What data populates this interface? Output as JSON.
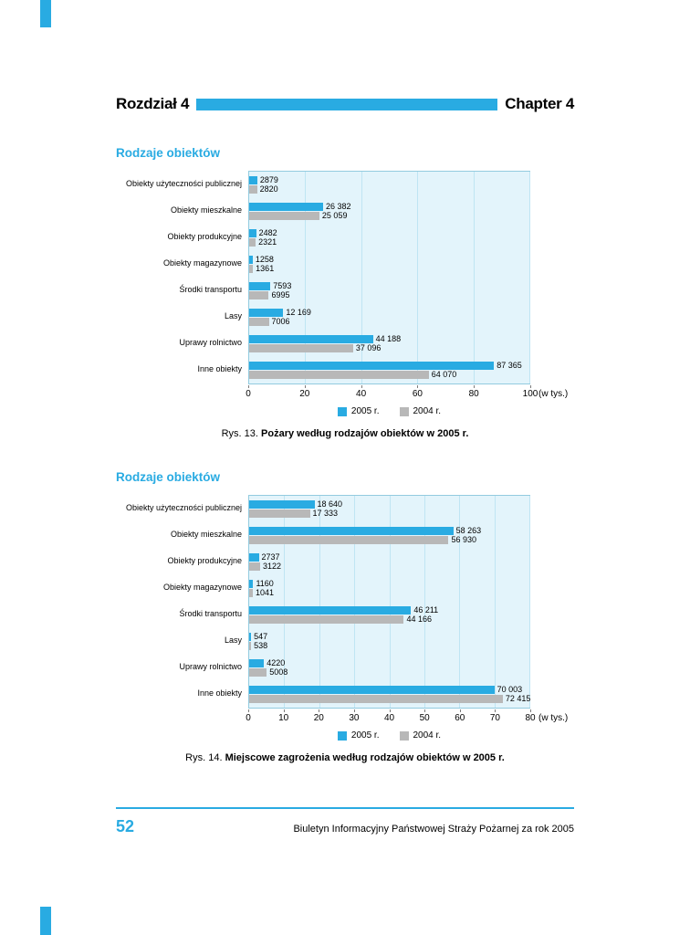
{
  "accent_color": "#29abe2",
  "header": {
    "left_title": "Rozdział 4",
    "right_title": "Chapter 4"
  },
  "sections": [
    {
      "title": "Rodzaje obiektów",
      "caption_label": "Rys. 13.",
      "caption_text": "Pożary według rodzajów obiektów w 2005 r."
    },
    {
      "title": "Rodzaje obiektów",
      "caption_label": "Rys. 14.",
      "caption_text": "Miejscowe zagrożenia według rodzajów obiektów w 2005 r."
    }
  ],
  "footer": {
    "page_number": "52",
    "journal_title": "Biuletyn Informacyjny Państwowej Straży Pożarnej za rok 2005"
  },
  "chart_data": [
    {
      "type": "bar",
      "orientation": "horizontal",
      "title": "Rodzaje obiektów",
      "x_unit_label": "(w tys.)",
      "xlim": [
        0,
        100
      ],
      "xticks": [
        0,
        20,
        40,
        60,
        80,
        100
      ],
      "scale_divisor": 1000,
      "grid": true,
      "legend_position": "bottom",
      "plot_background": "#e3f4fb",
      "categories": [
        "Obiekty użyteczności publicznej",
        "Obiekty mieszkalne",
        "Obiekty produkcyjne",
        "Obiekty magazynowe",
        "Środki transportu",
        "Lasy",
        "Uprawy rolnictwo",
        "Inne obiekty"
      ],
      "series": [
        {
          "name": "2005 r.",
          "color": "#29abe2",
          "values": [
            2879,
            26382,
            2482,
            1258,
            7593,
            12169,
            44188,
            87365
          ],
          "labels": [
            "2879",
            "26 382",
            "2482",
            "1258",
            "7593",
            "12 169",
            "44 188",
            "87 365"
          ]
        },
        {
          "name": "2004 r.",
          "color": "#b8b8b8",
          "values": [
            2820,
            25059,
            2321,
            1361,
            6995,
            7006,
            37096,
            64070
          ],
          "labels": [
            "2820",
            "25 059",
            "2321",
            "1361",
            "6995",
            "7006",
            "37 096",
            "64 070"
          ]
        }
      ]
    },
    {
      "type": "bar",
      "orientation": "horizontal",
      "title": "Rodzaje obiektów",
      "x_unit_label": "(w tys.)",
      "xlim": [
        0,
        80
      ],
      "xticks": [
        0,
        10,
        20,
        30,
        40,
        50,
        60,
        70,
        80
      ],
      "scale_divisor": 1000,
      "grid": true,
      "legend_position": "bottom",
      "plot_background": "#e3f4fb",
      "categories": [
        "Obiekty użyteczności publicznej",
        "Obiekty mieszkalne",
        "Obiekty produkcyjne",
        "Obiekty magazynowe",
        "Środki transportu",
        "Lasy",
        "Uprawy rolnictwo",
        "Inne obiekty"
      ],
      "series": [
        {
          "name": "2005 r.",
          "color": "#29abe2",
          "values": [
            18640,
            58263,
            2737,
            1160,
            46211,
            547,
            4220,
            70003
          ],
          "labels": [
            "18 640",
            "58 263",
            "2737",
            "1160",
            "46 211",
            "547",
            "4220",
            "70 003"
          ]
        },
        {
          "name": "2004 r.",
          "color": "#b8b8b8",
          "values": [
            17333,
            56930,
            3122,
            1041,
            44166,
            538,
            5008,
            72415
          ],
          "labels": [
            "17 333",
            "56 930",
            "3122",
            "1041",
            "44 166",
            "538",
            "5008",
            "72 415"
          ]
        }
      ]
    }
  ]
}
